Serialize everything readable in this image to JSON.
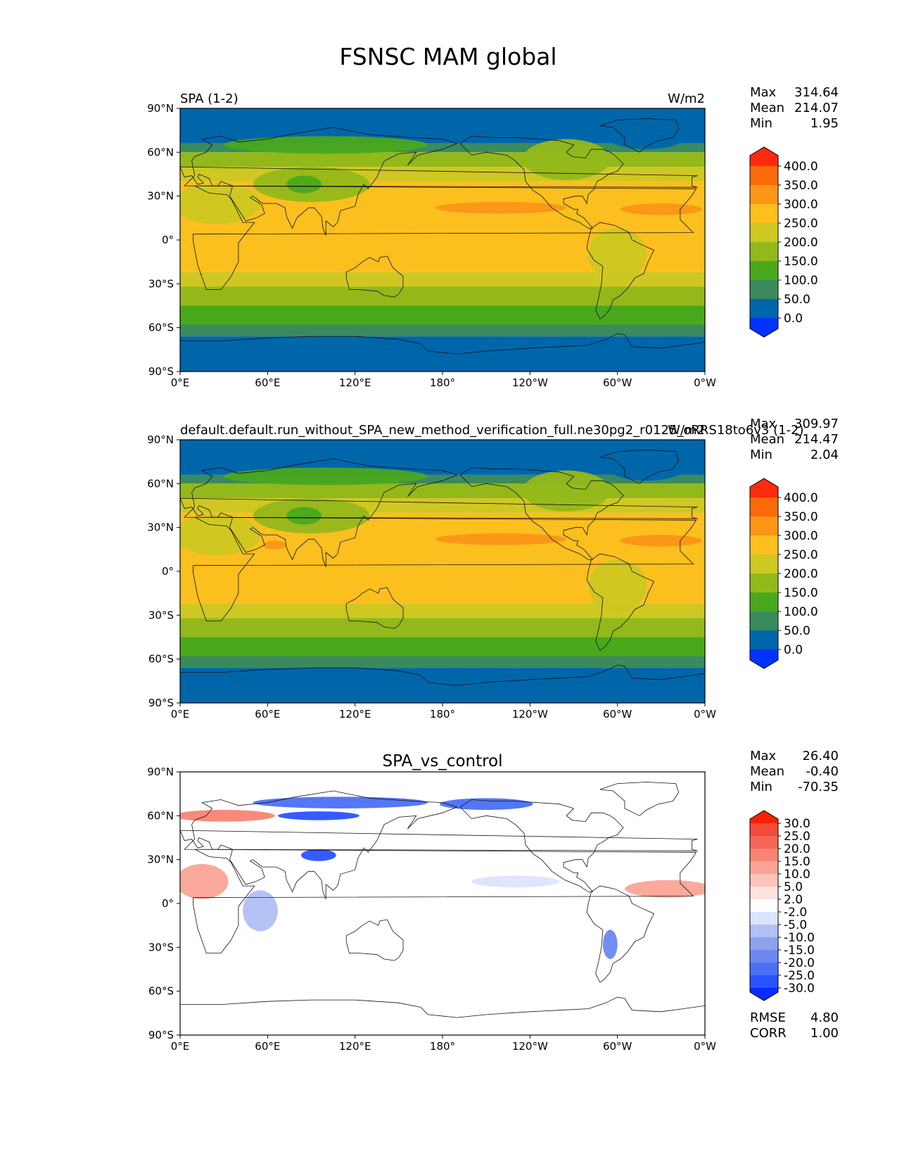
{
  "title": "FSNSC MAM global",
  "x_ticks": [
    "0°E",
    "60°E",
    "120°E",
    "180°",
    "120°W",
    "60°W",
    "0°W"
  ],
  "y_ticks": [
    "90°N",
    "60°N",
    "30°N",
    "0°",
    "30°S",
    "60°S",
    "90°S"
  ],
  "colors": {
    "field": [
      "#0033ff",
      "#0066aa",
      "#3a8a5e",
      "#4aa81c",
      "#93b81a",
      "#cfc722",
      "#fbbf1e",
      "#fb9617",
      "#fb6a0a",
      "#ff2a10"
    ],
    "diff": [
      "#0a2cff",
      "#2a52ff",
      "#4a70f5",
      "#6a88f0",
      "#8ea2ee",
      "#b0c0f4",
      "#dce4fc",
      "#ffffff",
      "#fde2de",
      "#fdc4bc",
      "#fba496",
      "#f88474",
      "#f66656",
      "#f44a38",
      "#ff2000"
    ]
  },
  "panels": [
    {
      "id": "test",
      "left_title": "SPA (1-2)",
      "right_title": "W/m2",
      "center_title": "",
      "stats": [
        {
          "label": "Max",
          "value": "314.64"
        },
        {
          "label": "Mean",
          "value": "214.07"
        },
        {
          "label": "Min",
          "value": "1.95"
        }
      ],
      "colorbar_labels": [
        "400.0",
        "350.0",
        "300.0",
        "250.0",
        "200.0",
        "150.0",
        "100.0",
        "50.0",
        "0.0"
      ],
      "extra_stats": []
    },
    {
      "id": "ref",
      "left_title": "default.default.run_without_SPA_new_method_verification_full.ne30pg2_r0125_oRRS18to6v3 (1-2)",
      "right_title": "W/m2",
      "center_title": "",
      "stats": [
        {
          "label": "Max",
          "value": "309.97"
        },
        {
          "label": "Mean",
          "value": "214.47"
        },
        {
          "label": "Min",
          "value": "2.04"
        }
      ],
      "colorbar_labels": [
        "400.0",
        "350.0",
        "300.0",
        "250.0",
        "200.0",
        "150.0",
        "100.0",
        "50.0",
        "0.0"
      ],
      "extra_stats": []
    },
    {
      "id": "diff",
      "left_title": "",
      "right_title": "",
      "center_title": "SPA_vs_control",
      "stats": [
        {
          "label": "Max",
          "value": "26.40"
        },
        {
          "label": "Mean",
          "value": "-0.40"
        },
        {
          "label": "Min",
          "value": "-70.35"
        }
      ],
      "colorbar_labels": [
        "30.0",
        "25.0",
        "20.0",
        "15.0",
        "10.0",
        "5.0",
        "2.0",
        "-2.0",
        "-5.0",
        "-10.0",
        "-15.0",
        "-20.0",
        "-25.0",
        "-30.0"
      ],
      "extra_stats": [
        {
          "label": "RMSE",
          "value": "4.80"
        },
        {
          "label": "CORR",
          "value": "1.00"
        }
      ]
    }
  ]
}
